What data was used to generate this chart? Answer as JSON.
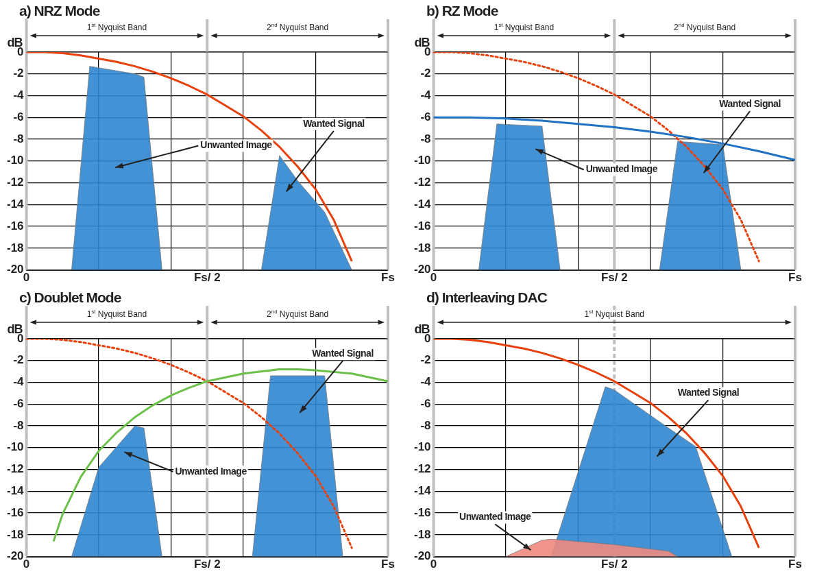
{
  "chart_data": [
    {
      "type": "line",
      "title": "a) NRZ Mode",
      "ylabel": "dB",
      "categories": [
        "0",
        null,
        null,
        null,
        null,
        null,
        null,
        null,
        null,
        null,
        null,
        null,
        null,
        null,
        null,
        null,
        null,
        null,
        null,
        null,
        "Fs/ 2",
        null,
        null,
        null,
        null,
        null,
        null,
        null,
        null,
        null,
        null,
        null,
        null,
        null,
        null,
        null,
        null,
        null,
        null,
        null,
        "Fs"
      ],
      "ylim": [
        -20,
        0
      ],
      "yticks": [
        0,
        -2,
        -4,
        -6,
        -8,
        -10,
        -12,
        -14,
        -16,
        -18,
        -20
      ],
      "grid": true,
      "legend": false,
      "marker": "none",
      "series": [
        {
          "type": "area",
          "color": "#2f86d0",
          "values": [
            null,
            null,
            null,
            null,
            null,
            -20,
            null,
            -1.3,
            null,
            null,
            null,
            null,
            -2,
            -2.3,
            null,
            -20,
            null,
            null,
            null,
            null,
            null,
            null,
            null,
            null,
            null,
            null,
            null,
            null,
            null,
            null,
            null,
            null,
            null,
            null,
            null,
            null,
            null,
            null,
            null,
            null,
            null
          ]
        },
        {
          "type": "area",
          "color": "#2f86d0",
          "values": [
            null,
            null,
            null,
            null,
            null,
            null,
            null,
            null,
            null,
            null,
            null,
            null,
            null,
            null,
            null,
            null,
            null,
            null,
            null,
            null,
            null,
            null,
            null,
            null,
            null,
            null,
            -20,
            null,
            -9.5,
            null,
            -11.8,
            null,
            null,
            -14.7,
            null,
            null,
            -20,
            null,
            null,
            null,
            null
          ]
        },
        {
          "type": "line",
          "color": "#e8410c",
          "line_style": "solid",
          "values": [
            0,
            null,
            0,
            null,
            -0.1,
            null,
            -0.3,
            null,
            -0.6,
            null,
            -0.9,
            null,
            -1.3,
            null,
            -1.8,
            null,
            -2.4,
            null,
            -3.1,
            null,
            -3.9,
            null,
            -4.9,
            null,
            -5.9,
            null,
            -7.2,
            null,
            -8.7,
            null,
            -10.5,
            null,
            -12.6,
            null,
            -15.4,
            null,
            -19.2,
            null,
            null,
            null,
            null
          ]
        }
      ],
      "ref_lines": [
        {
          "axis": "x",
          "value": "0",
          "color": "#c0c0c0",
          "line_style": "solid"
        },
        {
          "axis": "x",
          "value": "Fs/ 2",
          "color": "#c0c0c0",
          "line_style": "solid"
        },
        {
          "axis": "x",
          "value": "Fs",
          "color": "#c0c0c0",
          "line_style": "solid"
        }
      ],
      "annotations": [
        "1$^{st}$ Nyquist Band",
        "2$^{nd}$ Nyquist Band",
        "Unwanted Image",
        "Wanted Signal"
      ]
    },
    {
      "type": "line",
      "title": "b) RZ Mode",
      "ylabel": "dB",
      "categories": [
        "0",
        null,
        null,
        null,
        null,
        null,
        null,
        null,
        null,
        null,
        null,
        null,
        null,
        null,
        null,
        null,
        null,
        null,
        null,
        null,
        "Fs/ 2",
        null,
        null,
        null,
        null,
        null,
        null,
        null,
        null,
        null,
        null,
        null,
        null,
        null,
        null,
        null,
        null,
        null,
        null,
        null,
        "Fs"
      ],
      "ylim": [
        -20,
        0
      ],
      "yticks": [
        0,
        -2,
        -4,
        -6,
        -8,
        -10,
        -12,
        -14,
        -16,
        -18,
        -20
      ],
      "grid": true,
      "legend": false,
      "marker": "none",
      "series": [
        {
          "type": "area",
          "color": "#2f86d0",
          "values": [
            null,
            null,
            null,
            null,
            null,
            -20,
            null,
            -6.6,
            null,
            null,
            null,
            null,
            -6.8,
            null,
            -20,
            null,
            null,
            null,
            null,
            null,
            null,
            null,
            null,
            null,
            null,
            null,
            null,
            null,
            null,
            null,
            null,
            null,
            null,
            null,
            null,
            null,
            null,
            null,
            null,
            null,
            null
          ]
        },
        {
          "type": "area",
          "color": "#2f86d0",
          "values": [
            null,
            null,
            null,
            null,
            null,
            null,
            null,
            null,
            null,
            null,
            null,
            null,
            null,
            null,
            null,
            null,
            null,
            null,
            null,
            null,
            null,
            null,
            null,
            null,
            null,
            -20,
            null,
            -8.2,
            null,
            null,
            null,
            null,
            -8.5,
            null,
            -20,
            null,
            null,
            null,
            null,
            null,
            null
          ]
        },
        {
          "type": "line",
          "color": "#e8410c",
          "line_style": "dotted",
          "values": [
            0,
            null,
            0,
            null,
            -0.1,
            null,
            -0.3,
            null,
            -0.6,
            null,
            -0.9,
            null,
            -1.3,
            null,
            -1.8,
            null,
            -2.4,
            null,
            -3.1,
            null,
            -3.9,
            null,
            -4.9,
            null,
            -5.9,
            null,
            -7.2,
            null,
            -8.7,
            null,
            -10.5,
            null,
            -12.6,
            null,
            -15.4,
            null,
            -19.2,
            null,
            null,
            null,
            null
          ]
        },
        {
          "type": "line",
          "color": "#1f72c4",
          "line_style": "solid",
          "values": [
            -6,
            null,
            null,
            null,
            -6,
            null,
            null,
            null,
            -6.1,
            null,
            null,
            null,
            -6.3,
            null,
            null,
            null,
            -6.6,
            null,
            null,
            null,
            -6.9,
            null,
            null,
            null,
            -7.3,
            null,
            null,
            null,
            -7.8,
            null,
            null,
            null,
            -8.4,
            null,
            null,
            null,
            -9.1,
            null,
            null,
            null,
            -9.9
          ]
        }
      ],
      "ref_lines": [
        {
          "axis": "x",
          "value": "0",
          "color": "#c0c0c0",
          "line_style": "solid"
        },
        {
          "axis": "x",
          "value": "Fs/ 2",
          "color": "#c0c0c0",
          "line_style": "solid"
        },
        {
          "axis": "x",
          "value": "Fs",
          "color": "#c0c0c0",
          "line_style": "solid"
        }
      ],
      "annotations": [
        "1$^{st}$ Nyquist Band",
        "2$^{nd}$ Nyquist Band",
        "Unwanted Image",
        "Wanted Signal"
      ]
    },
    {
      "type": "line",
      "title": "c) Doublet Mode",
      "ylabel": "dB",
      "categories": [
        "0",
        null,
        null,
        null,
        null,
        null,
        null,
        null,
        null,
        null,
        null,
        null,
        null,
        null,
        null,
        null,
        null,
        null,
        null,
        null,
        "Fs/ 2",
        null,
        null,
        null,
        null,
        null,
        null,
        null,
        null,
        null,
        null,
        null,
        null,
        null,
        null,
        null,
        null,
        null,
        null,
        null,
        "Fs"
      ],
      "ylim": [
        -20,
        0
      ],
      "yticks": [
        0,
        -2,
        -4,
        -6,
        -8,
        -10,
        -12,
        -14,
        -16,
        -18,
        -20
      ],
      "grid": true,
      "legend": false,
      "marker": "none",
      "series": [
        {
          "type": "area",
          "color": "#2f86d0",
          "values": [
            null,
            null,
            null,
            null,
            null,
            -20,
            null,
            null,
            -11.8,
            null,
            null,
            null,
            -8,
            -8.2,
            null,
            -20,
            null,
            null,
            null,
            null,
            null,
            null,
            null,
            null,
            null,
            null,
            null,
            null,
            null,
            null,
            null,
            null,
            null,
            null,
            null,
            null,
            null,
            null,
            null,
            null,
            null
          ]
        },
        {
          "type": "area",
          "color": "#2f86d0",
          "values": [
            null,
            null,
            null,
            null,
            null,
            null,
            null,
            null,
            null,
            null,
            null,
            null,
            null,
            null,
            null,
            null,
            null,
            null,
            null,
            null,
            null,
            null,
            null,
            null,
            null,
            -20,
            null,
            -3.4,
            null,
            null,
            null,
            null,
            null,
            -3.4,
            null,
            -20,
            null,
            null,
            null,
            null,
            null
          ]
        },
        {
          "type": "line",
          "color": "#e8410c",
          "line_style": "dotted",
          "values": [
            0,
            null,
            0,
            null,
            -0.1,
            null,
            -0.3,
            null,
            -0.6,
            null,
            -0.9,
            null,
            -1.3,
            null,
            -1.8,
            null,
            -2.4,
            null,
            -3.1,
            null,
            -3.9,
            null,
            -4.9,
            null,
            -5.9,
            null,
            -7.2,
            null,
            -8.7,
            null,
            -10.5,
            null,
            -12.6,
            null,
            -15.4,
            null,
            -19.2,
            null,
            null,
            null,
            null
          ]
        },
        {
          "type": "line",
          "color": "#6cc04a",
          "line_style": "solid",
          "values": [
            null,
            null,
            null,
            -18.6,
            -16.1,
            null,
            -12.7,
            null,
            -10.3,
            null,
            -8.6,
            null,
            -7.2,
            null,
            -6.1,
            null,
            -5.2,
            null,
            -4.5,
            null,
            -3.9,
            null,
            null,
            null,
            -3.2,
            null,
            null,
            null,
            -2.8,
            null,
            -2.8,
            null,
            -2.9,
            null,
            null,
            null,
            -3.2,
            null,
            null,
            null,
            -3.9
          ]
        }
      ],
      "ref_lines": [
        {
          "axis": "x",
          "value": "0",
          "color": "#c0c0c0",
          "line_style": "solid"
        },
        {
          "axis": "x",
          "value": "Fs/ 2",
          "color": "#c0c0c0",
          "line_style": "solid"
        },
        {
          "axis": "x",
          "value": "Fs",
          "color": "#c0c0c0",
          "line_style": "solid"
        }
      ],
      "annotations": [
        "1$^{st}$ Nyquist Band",
        "2$^{nd}$ Nyquist Band",
        "Unwanted Image",
        "Wanted Signal"
      ]
    },
    {
      "type": "line",
      "title": "d) Interleaving DAC",
      "ylabel": "dB",
      "categories": [
        "0",
        null,
        null,
        null,
        null,
        null,
        null,
        null,
        null,
        null,
        null,
        null,
        null,
        null,
        null,
        null,
        null,
        null,
        null,
        null,
        "Fs/ 2",
        null,
        null,
        null,
        null,
        null,
        null,
        null,
        null,
        null,
        null,
        null,
        null,
        null,
        null,
        null,
        null,
        null,
        null,
        null,
        "Fs"
      ],
      "ylim": [
        -20,
        0
      ],
      "yticks": [
        0,
        -2,
        -4,
        -6,
        -8,
        -10,
        -12,
        -14,
        -16,
        -18,
        -20
      ],
      "grid": true,
      "legend": false,
      "marker": "none",
      "series": [
        {
          "type": "area",
          "color": "#2f86d0",
          "values": [
            null,
            null,
            null,
            null,
            null,
            null,
            null,
            null,
            null,
            null,
            null,
            null,
            null,
            -20,
            null,
            null,
            null,
            null,
            null,
            -4.4,
            -4.7,
            null,
            null,
            null,
            null,
            null,
            -8.2,
            null,
            null,
            -9.9,
            null,
            null,
            null,
            -20,
            null,
            null,
            null,
            null,
            null,
            null,
            null
          ]
        },
        {
          "type": "area",
          "color": "#f08a80",
          "values": [
            null,
            null,
            null,
            null,
            null,
            null,
            null,
            null,
            -20,
            null,
            null,
            null,
            -18.5,
            -18.4,
            null,
            null,
            null,
            null,
            null,
            null,
            -18.9,
            null,
            null,
            null,
            null,
            null,
            -19.5,
            -20,
            null,
            null,
            null,
            null,
            null,
            null,
            null,
            null,
            null,
            null,
            null,
            null,
            null
          ]
        },
        {
          "type": "line",
          "color": "#e8410c",
          "line_style": "solid",
          "values": [
            0,
            null,
            0,
            null,
            -0.1,
            null,
            -0.3,
            null,
            -0.6,
            null,
            -0.9,
            null,
            -1.3,
            null,
            -1.8,
            null,
            -2.4,
            null,
            -3.1,
            null,
            -3.9,
            null,
            -4.9,
            null,
            -5.9,
            null,
            -7.2,
            null,
            -8.7,
            null,
            -10.5,
            null,
            -12.6,
            null,
            -15.4,
            null,
            -19.2,
            null,
            null,
            null,
            null
          ]
        }
      ],
      "ref_lines": [
        {
          "axis": "x",
          "value": "0",
          "color": "#c0c0c0",
          "line_style": "solid"
        },
        {
          "axis": "x",
          "value": "Fs/ 2",
          "color": "#c0c0c0",
          "line_style": "dashed"
        },
        {
          "axis": "x",
          "value": "Fs",
          "color": "#c0c0c0",
          "line_style": "solid"
        }
      ],
      "annotations": [
        "1$^{st}$ Nyquist Band",
        "Wanted Signal",
        "Unwanted Image"
      ]
    }
  ]
}
